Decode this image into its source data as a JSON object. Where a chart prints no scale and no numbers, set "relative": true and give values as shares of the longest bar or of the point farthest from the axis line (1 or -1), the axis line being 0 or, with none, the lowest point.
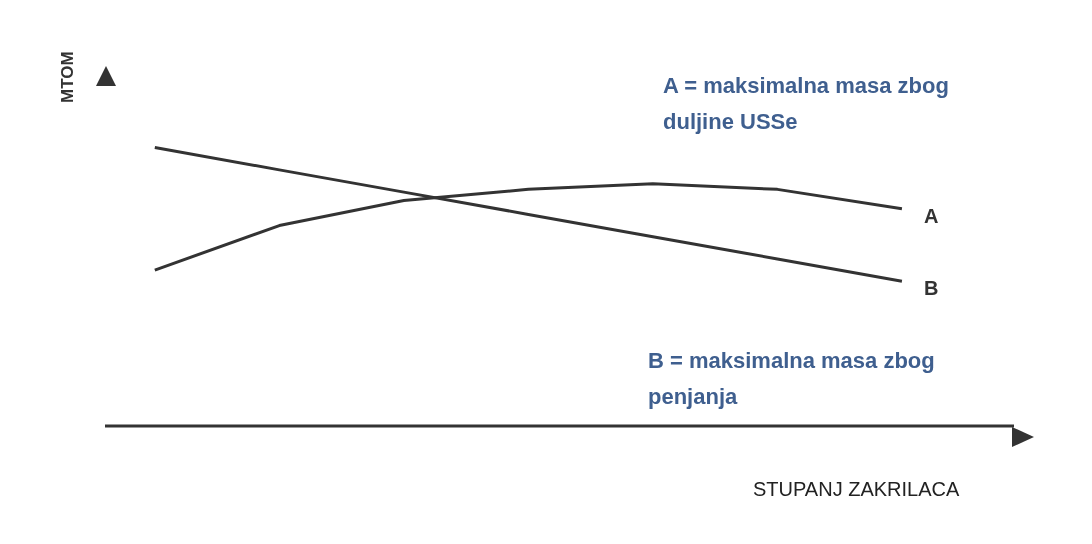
{
  "chart_data": {
    "type": "line",
    "relative": true,
    "xlabel": "STUPANJ ZAKRILACA",
    "ylabel": "MTOM",
    "annotations": [
      "A = maksimalna masa zbog duljine USSe",
      "B = maksimalna masa zbog penjanja"
    ],
    "categories": [
      null,
      null,
      null,
      null,
      null,
      null,
      null
    ],
    "series": [
      {
        "name": "A",
        "color": "#333333",
        "values": [
          0.56,
          0.72,
          0.81,
          0.85,
          0.87,
          0.85,
          0.78
        ]
      },
      {
        "name": "B",
        "color": "#333333",
        "values": [
          1,
          0.92,
          0.84,
          0.76,
          0.68,
          0.6,
          0.52
        ]
      }
    ]
  }
}
